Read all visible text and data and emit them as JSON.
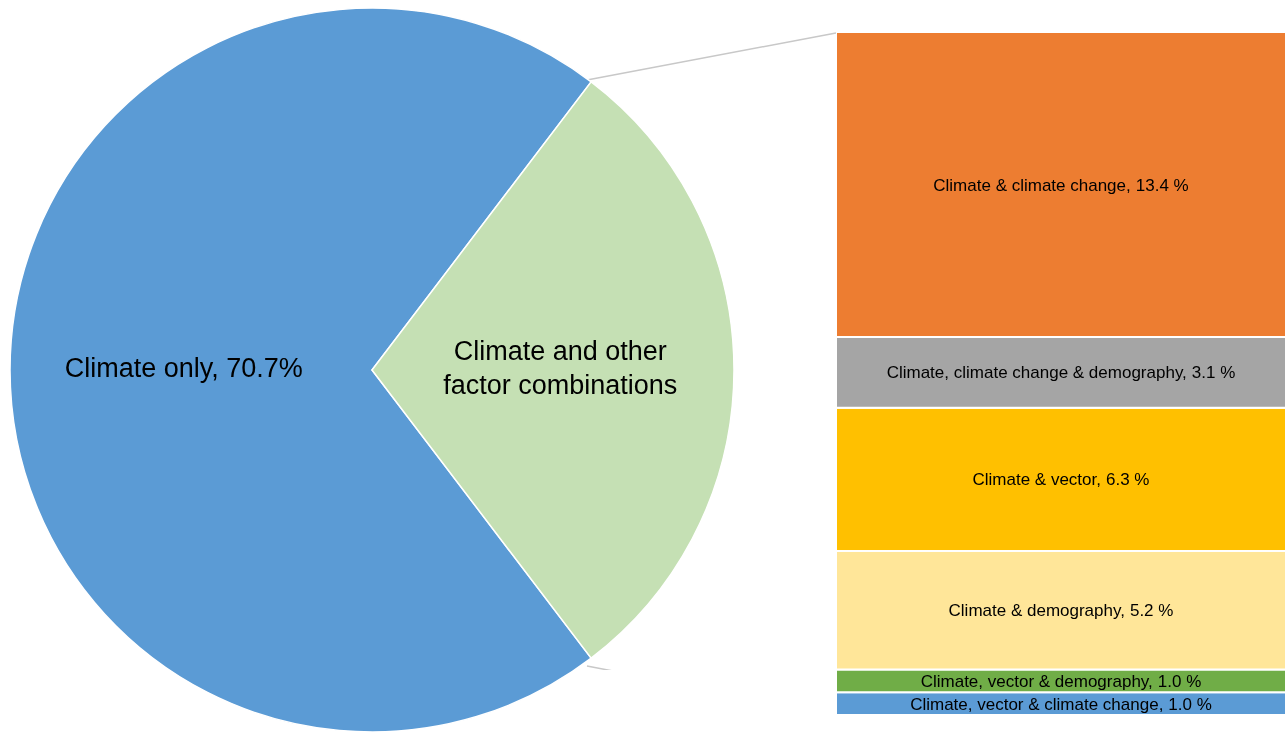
{
  "chart_data": [
    {
      "type": "pie",
      "categories": [
        "Climate only",
        "Climate and other factor combinations"
      ],
      "values": [
        70.7,
        29.3
      ],
      "colors": [
        "#5b9bd5",
        "#c5e0b4"
      ],
      "value_labels": [
        "70.7%",
        null
      ],
      "legend": false
    },
    {
      "type": "bar",
      "stacked": true,
      "categories": [
        null
      ],
      "legend": false,
      "series": [
        {
          "name": "Climate, vector & climate change,",
          "color": "#5b9bd5",
          "values": [
            1.0
          ],
          "value_labels": [
            "1.0 %"
          ]
        },
        {
          "name": "Climate, vector & demography,",
          "color": "#70ad47",
          "values": [
            1.0
          ],
          "value_labels": [
            "1.0 %"
          ]
        },
        {
          "name": "Climate & demography,",
          "color": "#ffe699",
          "values": [
            5.2
          ],
          "value_labels": [
            "5.2 %"
          ]
        },
        {
          "name": "Climate & vector,",
          "color": "#ffc000",
          "values": [
            6.3
          ],
          "value_labels": [
            "6.3 %"
          ]
        },
        {
          "name": "Climate, climate change & demography,",
          "color": "#a5a5a5",
          "values": [
            3.1
          ],
          "value_labels": [
            "3.1 %"
          ]
        },
        {
          "name": "Climate & climate change,",
          "color": "#ed7d31",
          "values": [
            13.4
          ],
          "value_labels": [
            "13.4 %"
          ]
        }
      ]
    }
  ]
}
